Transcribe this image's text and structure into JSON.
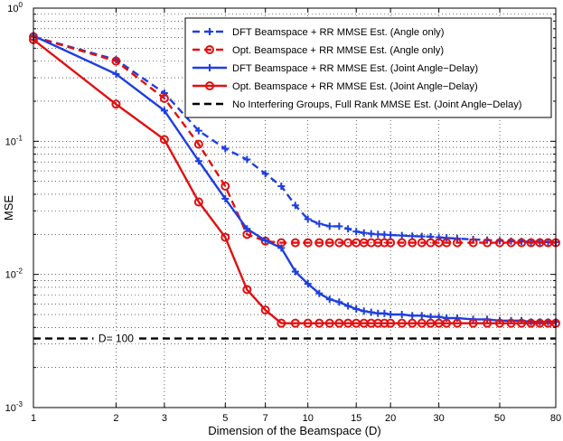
{
  "chart_data": {
    "type": "line",
    "xscale": "log",
    "yscale": "log",
    "xlim": [
      1,
      80
    ],
    "ylim": [
      0.001,
      1
    ],
    "xlabel": "Dimension of the Beamspace (D)",
    "ylabel": "MSE",
    "grid": true,
    "legend_position": "top-right",
    "xticks": [
      {
        "value": 1,
        "label": "1"
      },
      {
        "value": 2,
        "label": "2"
      },
      {
        "value": 3,
        "label": "3"
      },
      {
        "value": 5,
        "label": "5"
      },
      {
        "value": 7,
        "label": "7"
      },
      {
        "value": 10,
        "label": "10"
      },
      {
        "value": 15,
        "label": "15"
      },
      {
        "value": 20,
        "label": "20"
      },
      {
        "value": 30,
        "label": "30"
      },
      {
        "value": 50,
        "label": "50"
      },
      {
        "value": 80,
        "label": "80"
      }
    ],
    "yticks": [
      {
        "value": 0.001,
        "base": "10",
        "exp": "-3"
      },
      {
        "value": 0.01,
        "base": "10",
        "exp": "-2"
      },
      {
        "value": 0.1,
        "base": "10",
        "exp": "-1"
      },
      {
        "value": 1,
        "base": "10",
        "exp": "0"
      }
    ],
    "annotation": {
      "text": "D= 100",
      "x": 2.0,
      "y": 0.0033
    },
    "series": [
      {
        "name": "DFT Beamspace + RR MMSE Est. (Angle only)",
        "color": "#1f3fe0",
        "dash": true,
        "marker": "plus",
        "x": [
          1,
          2,
          3,
          4,
          5,
          6,
          7,
          8,
          9,
          10,
          11,
          12,
          13,
          14,
          15,
          16,
          17,
          18,
          19,
          20,
          22,
          24,
          26,
          28,
          30,
          32,
          35,
          40,
          45,
          50,
          55,
          60,
          65,
          70,
          75,
          80
        ],
        "y": [
          0.61,
          0.41,
          0.23,
          0.12,
          0.088,
          0.073,
          0.057,
          0.046,
          0.033,
          0.026,
          0.024,
          0.023,
          0.023,
          0.022,
          0.021,
          0.0205,
          0.0202,
          0.02,
          0.0199,
          0.0198,
          0.0196,
          0.0194,
          0.0193,
          0.0192,
          0.019,
          0.0188,
          0.0186,
          0.0183,
          0.0181,
          0.0179,
          0.0178,
          0.0177,
          0.0176,
          0.0176,
          0.0175,
          0.0175
        ]
      },
      {
        "name": "Opt. Beamspace + RR MMSE Est. (Angle only)",
        "color": "#e01010",
        "dash": true,
        "marker": "circle",
        "x": [
          1,
          2,
          3,
          4,
          5,
          6,
          7,
          8,
          9,
          10,
          11,
          12,
          13,
          14,
          15,
          16,
          17,
          18,
          19,
          20,
          22,
          24,
          26,
          28,
          30,
          32,
          35,
          40,
          45,
          50,
          55,
          60,
          65,
          70,
          75,
          80
        ],
        "y": [
          0.61,
          0.4,
          0.21,
          0.095,
          0.046,
          0.02,
          0.0178,
          0.0173,
          0.0173,
          0.0173,
          0.0173,
          0.0173,
          0.0173,
          0.0173,
          0.0173,
          0.0173,
          0.0173,
          0.0173,
          0.0173,
          0.0173,
          0.0173,
          0.0173,
          0.0173,
          0.0173,
          0.0173,
          0.0173,
          0.0173,
          0.0173,
          0.0173,
          0.0173,
          0.0173,
          0.0173,
          0.0173,
          0.0173,
          0.0173,
          0.0173
        ]
      },
      {
        "name": "DFT Beamspace + RR MMSE Est. (Joint Angle−Delay)",
        "color": "#1f3fe0",
        "dash": false,
        "marker": "plus",
        "x": [
          1,
          2,
          3,
          4,
          5,
          6,
          7,
          8,
          9,
          10,
          11,
          12,
          13,
          14,
          15,
          16,
          17,
          18,
          19,
          20,
          22,
          24,
          26,
          28,
          30,
          32,
          35,
          40,
          45,
          50,
          55,
          60,
          65,
          70,
          75,
          80
        ],
        "y": [
          0.62,
          0.32,
          0.17,
          0.071,
          0.037,
          0.022,
          0.018,
          0.0158,
          0.0105,
          0.0085,
          0.0072,
          0.0065,
          0.0062,
          0.0058,
          0.0055,
          0.0053,
          0.0052,
          0.0051,
          0.0051,
          0.005,
          0.005,
          0.0049,
          0.0049,
          0.0048,
          0.0048,
          0.0047,
          0.0047,
          0.0046,
          0.0046,
          0.0045,
          0.0045,
          0.0045,
          0.0044,
          0.0044,
          0.0044,
          0.0044
        ]
      },
      {
        "name": "Opt. Beamspace + RR MMSE Est. (Joint Angle−Delay)",
        "color": "#e01010",
        "dash": false,
        "marker": "circle",
        "x": [
          1,
          2,
          3,
          4,
          5,
          6,
          7,
          8,
          9,
          10,
          11,
          12,
          13,
          14,
          15,
          16,
          17,
          18,
          19,
          20,
          22,
          24,
          26,
          28,
          30,
          32,
          35,
          40,
          45,
          50,
          55,
          60,
          65,
          70,
          75,
          80
        ],
        "y": [
          0.58,
          0.19,
          0.103,
          0.035,
          0.019,
          0.0077,
          0.0054,
          0.0043,
          0.0043,
          0.0043,
          0.0043,
          0.0043,
          0.0043,
          0.0043,
          0.0043,
          0.0043,
          0.0043,
          0.0043,
          0.0043,
          0.0043,
          0.0043,
          0.0043,
          0.0043,
          0.0043,
          0.0043,
          0.0043,
          0.0043,
          0.0043,
          0.0043,
          0.0043,
          0.0043,
          0.0043,
          0.0043,
          0.0043,
          0.0043,
          0.0043
        ]
      },
      {
        "name": "No Interfering Groups, Full Rank MMSE Est. (Joint Angle−Delay)",
        "color": "#000000",
        "dash": true,
        "marker": "none",
        "x": [
          1,
          80
        ],
        "y": [
          0.0033,
          0.0033
        ]
      }
    ]
  }
}
